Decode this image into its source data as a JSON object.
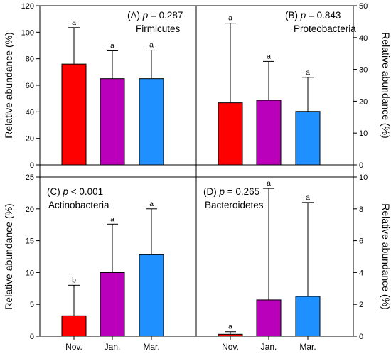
{
  "chart_data": {
    "type": "bar",
    "categories": [
      "Nov.",
      "Jan.",
      "Mar."
    ],
    "colors": [
      "#ff0000",
      "#bb00bb",
      "#1e90ff"
    ],
    "shared_ylabel": "Relative abundance (%)",
    "panels": [
      {
        "id": "A",
        "title_prefix": "(A) ",
        "title_stat": "p = 0.287",
        "taxon": "Firmicutes",
        "ylim": [
          0,
          120
        ],
        "yticks": [
          0,
          20,
          40,
          60,
          80,
          100,
          120
        ],
        "ylabel": "Relative abundance (%)",
        "values": [
          76,
          65,
          65
        ],
        "errors": [
          27.5,
          21,
          21.5
        ],
        "letters": [
          "a",
          "a",
          "a"
        ]
      },
      {
        "id": "B",
        "title_prefix": "(B) ",
        "title_stat": "p = 0.843",
        "taxon": "Proteobacteria",
        "ylim": [
          0,
          50
        ],
        "yticks": [
          0,
          10,
          20,
          30,
          40,
          50
        ],
        "ylabel": "Relative abundance (%)",
        "values": [
          19.5,
          20.3,
          16.8
        ],
        "errors": [
          25.0,
          12.2,
          10.7
        ],
        "letters": [
          "a",
          "a",
          "a"
        ]
      },
      {
        "id": "C",
        "title_prefix": "(C) ",
        "title_stat": "p < 0.001",
        "taxon": "Actinobacteria",
        "ylim": [
          0,
          25
        ],
        "yticks": [
          0,
          5,
          10,
          15,
          20,
          25
        ],
        "ylabel": "Relative abundance (%)",
        "values": [
          3.2,
          10.0,
          12.8
        ],
        "errors": [
          4.8,
          7.6,
          7.2
        ],
        "letters": [
          "b",
          "a",
          "a"
        ]
      },
      {
        "id": "D",
        "title_prefix": "(D) ",
        "title_stat": "p = 0.265",
        "taxon": "Bacteroidetes",
        "ylim": [
          0,
          10
        ],
        "yticks": [
          0,
          2,
          4,
          6,
          8,
          10
        ],
        "ylabel": "Relative abundance (%)",
        "values": [
          0.12,
          2.28,
          2.5
        ],
        "errors": [
          0.16,
          7.0,
          5.9
        ],
        "letters": [
          "a",
          "a",
          "a"
        ]
      }
    ]
  }
}
